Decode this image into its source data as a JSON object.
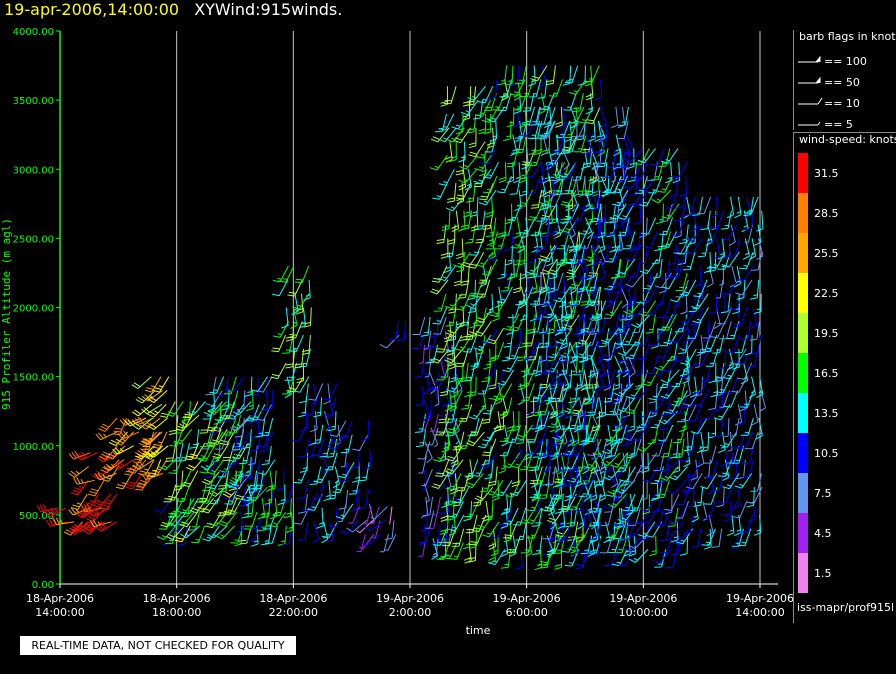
{
  "header": {
    "datetime": "19-apr-2006,14:00:00",
    "title": "XYWind:915winds."
  },
  "quality_note": "REAL-TIME DATA, NOT CHECKED FOR QUALITY",
  "legend_flags": {
    "title": "barb flags in knots",
    "items": [
      {
        "label": "== 100",
        "kind": "pennant"
      },
      {
        "label": "== 50",
        "kind": "pennant"
      },
      {
        "label": "== 10",
        "kind": "full"
      },
      {
        "label": "== 5",
        "kind": "half"
      }
    ]
  },
  "legend_speed": {
    "title": "wind-speed: knots",
    "bins": [
      {
        "label": "31.5",
        "color": "#ff0000"
      },
      {
        "label": "28.5",
        "color": "#ff8000"
      },
      {
        "label": "25.5",
        "color": "#ffa500"
      },
      {
        "label": "22.5",
        "color": "#ffff00"
      },
      {
        "label": "19.5",
        "color": "#adff2f"
      },
      {
        "label": "16.5",
        "color": "#00ff00"
      },
      {
        "label": "13.5",
        "color": "#00ffff"
      },
      {
        "label": "10.5",
        "color": "#0000ff"
      },
      {
        "label": "7.5",
        "color": "#6495ed"
      },
      {
        "label": "4.5",
        "color": "#a020f0"
      },
      {
        "label": "1.5",
        "color": "#ee82ee"
      }
    ]
  },
  "source_note": "iss-mapr/prof915l",
  "chart_data": {
    "type": "scatter",
    "ylabel": "915 Profiler Altitude (m agl)",
    "xlabel": "time",
    "ylim": [
      0,
      4000
    ],
    "yticks": [
      "0.00",
      "500.00",
      "1000.00",
      "1500.00",
      "2000.00",
      "2500.00",
      "3000.00",
      "3500.00",
      "4000.00"
    ],
    "xlim_hours": [
      0,
      24
    ],
    "xticks": [
      {
        "hour": 0,
        "date": "18-Apr-2006",
        "time": "14:00:00"
      },
      {
        "hour": 4,
        "date": "18-Apr-2006",
        "time": "18:00:00"
      },
      {
        "hour": 8,
        "date": "18-Apr-2006",
        "time": "22:00:00"
      },
      {
        "hour": 12,
        "date": "19-Apr-2006",
        "time": "2:00:00"
      },
      {
        "hour": 16,
        "date": "19-Apr-2006",
        "time": "6:00:00"
      },
      {
        "hour": 20,
        "date": "19-Apr-2006",
        "time": "10:00:00"
      },
      {
        "hour": 24,
        "date": "19-Apr-2006",
        "time": "14:00:00"
      }
    ],
    "grid": "vertical",
    "colors": {
      "axis": "#00ff00",
      "grid": "#c8c8c8",
      "background": "#000000"
    },
    "series": [
      {
        "hours": [
          0.0,
          1.5
        ],
        "alt": [
          450,
          560
        ],
        "dir": 240,
        "speed": 30
      },
      {
        "hours": [
          1.0,
          2.0
        ],
        "alt": [
          450,
          1000
        ],
        "dir": 235,
        "speed": 30
      },
      {
        "hours": [
          2.0,
          3.5
        ],
        "alt": [
          800,
          1250
        ],
        "dir": 225,
        "speed": 27
      },
      {
        "hours": [
          3.2,
          3.9
        ],
        "alt": [
          900,
          1550
        ],
        "dir": 215,
        "speed": 23
      },
      {
        "hours": [
          3.8,
          5.0
        ],
        "alt": [
          420,
          650
        ],
        "dir": 200,
        "speed": 13
      },
      {
        "hours": [
          4.0,
          6.5
        ],
        "alt": [
          420,
          1350
        ],
        "dir": 205,
        "speed": 18
      },
      {
        "hours": [
          5.3,
          7.5
        ],
        "alt": [
          700,
          1500
        ],
        "dir": 200,
        "speed": 12
      },
      {
        "hours": [
          6.2,
          8.0
        ],
        "alt": [
          420,
          900
        ],
        "dir": 190,
        "speed": 14
      },
      {
        "hours": [
          7.8,
          8.6
        ],
        "alt": [
          1500,
          2300
        ],
        "dir": 190,
        "speed": 16
      },
      {
        "hours": [
          8.5,
          9.5
        ],
        "alt": [
          450,
          1450
        ],
        "dir": 185,
        "speed": 11
      },
      {
        "hours": [
          9.8,
          10.6
        ],
        "alt": [
          580,
          1200
        ],
        "dir": 190,
        "speed": 10
      },
      {
        "hours": [
          10.2,
          11.6
        ],
        "alt": [
          360,
          650
        ],
        "dir": 210,
        "speed": 6
      },
      {
        "hours": [
          11.6,
          12.0
        ],
        "alt": [
          1800,
          1900
        ],
        "dir": 200,
        "speed": 8
      },
      {
        "hours": [
          12.5,
          13.5
        ],
        "alt": [
          330,
          2000
        ],
        "dir": 180,
        "speed": 9
      },
      {
        "hours": [
          13.3,
          15.0
        ],
        "alt": [
          300,
          3600
        ],
        "dir": 195,
        "speed": 17
      },
      {
        "hours": [
          15.0,
          18.5
        ],
        "alt": [
          250,
          3750
        ],
        "dir": 190,
        "speed": 15
      },
      {
        "hours": [
          16.5,
          19.6
        ],
        "alt": [
          350,
          3500
        ],
        "dir": 180,
        "speed": 11
      },
      {
        "hours": [
          19.2,
          21.5
        ],
        "alt": [
          250,
          3200
        ],
        "dir": 200,
        "speed": 12
      },
      {
        "hours": [
          21.5,
          24.0
        ],
        "alt": [
          400,
          2800
        ],
        "dir": 190,
        "speed": 11
      }
    ]
  }
}
